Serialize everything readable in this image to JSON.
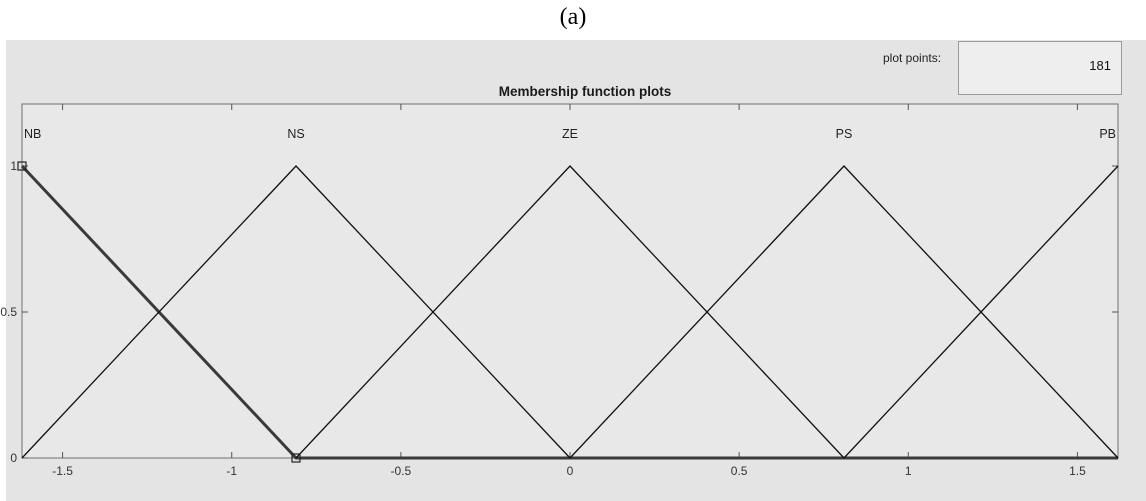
{
  "caption": "(a)",
  "plot_points": {
    "label": "plot points:",
    "value": "181"
  },
  "chart_data": {
    "type": "line",
    "title": "Membership function plots",
    "xlim": [
      -1.62,
      1.62
    ],
    "ylim": [
      0,
      1
    ],
    "x_ticks": [
      "-1.5",
      "-1",
      "-0.5",
      "0",
      "0.5",
      "1",
      "1.5"
    ],
    "x_tick_values": [
      -1.5,
      -1,
      -0.5,
      0,
      0.5,
      1,
      1.5
    ],
    "y_ticks": [
      "0",
      "0.5",
      "1"
    ],
    "y_tick_values": [
      0,
      0.5,
      1
    ],
    "grid": false,
    "selected_series": "NB",
    "series": [
      {
        "name": "NB",
        "x": [
          -1.62,
          -0.81,
          1.62
        ],
        "y": [
          1,
          0,
          0
        ]
      },
      {
        "name": "NS",
        "x": [
          -1.62,
          -0.81,
          0
        ],
        "y": [
          0,
          1,
          0
        ]
      },
      {
        "name": "ZE",
        "x": [
          -0.81,
          0,
          0.81
        ],
        "y": [
          0,
          1,
          0
        ]
      },
      {
        "name": "PS",
        "x": [
          0,
          0.81,
          1.62
        ],
        "y": [
          0,
          1,
          0
        ]
      },
      {
        "name": "PB",
        "x": [
          0.81,
          1.62
        ],
        "y": [
          0,
          1
        ]
      }
    ]
  }
}
